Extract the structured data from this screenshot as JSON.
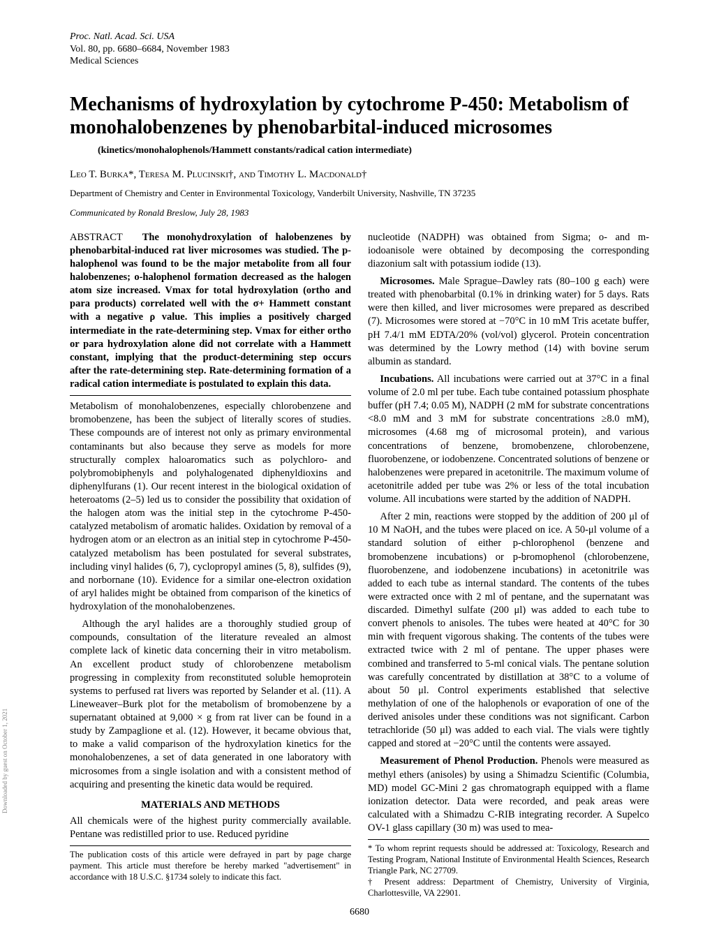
{
  "header": {
    "journal": "Proc. Natl. Acad. Sci. USA",
    "volume_line": "Vol. 80, pp. 6680–6684, November 1983",
    "section": "Medical Sciences"
  },
  "title": "Mechanisms of hydroxylation by cytochrome P-450: Metabolism of monohalobenzenes by phenobarbital-induced microsomes",
  "subtitle": "kinetics/monohalophenols/Hammett constants/radical cation intermediate",
  "authors_html": "Leo T. Burka*, Teresa M. Plucinski†, and Timothy L. Macdonald†",
  "affiliation": "Department of Chemistry and Center in Environmental Toxicology, Vanderbilt University, Nashville, TN 37235",
  "communicated": "Communicated by Ronald Breslow, July 28, 1983",
  "abstract_label": "ABSTRACT",
  "abstract_text": "The monohydroxylation of halobenzenes by phenobarbital-induced rat liver microsomes was studied. The p-halophenol was found to be the major metabolite from all four halobenzenes; o-halophenol formation decreased as the halogen atom size increased. Vmax for total hydroxylation (ortho and para products) correlated well with the σ+ Hammett constant with a negative ρ value. This implies a positively charged intermediate in the rate-determining step. Vmax for either ortho or para hydroxylation alone did not correlate with a Hammett constant, implying that the product-determining step occurs after the rate-determining step. Rate-determining formation of a radical cation intermediate is postulated to explain this data.",
  "left_paragraphs": [
    "Metabolism of monohalobenzenes, especially chlorobenzene and bromobenzene, has been the subject of literally scores of studies. These compounds are of interest not only as primary environmental contaminants but also because they serve as models for more structurally complex haloaromatics such as polychloro- and polybromobiphenyls and polyhalogenated diphenyldioxins and diphenylfurans (1). Our recent interest in the biological oxidation of heteroatoms (2–5) led us to consider the possibility that oxidation of the halogen atom was the initial step in the cytochrome P-450-catalyzed metabolism of aromatic halides. Oxidation by removal of a hydrogen atom or an electron as an initial step in cytochrome P-450-catalyzed metabolism has been postulated for several substrates, including vinyl halides (6, 7), cyclopropyl amines (5, 8), sulfides (9), and norbornane (10). Evidence for a similar one-electron oxidation of aryl halides might be obtained from comparison of the kinetics of hydroxylation of the monohalobenzenes.",
    "Although the aryl halides are a thoroughly studied group of compounds, consultation of the literature revealed an almost complete lack of kinetic data concerning their in vitro metabolism. An excellent product study of chlorobenzene metabolism progressing in complexity from reconstituted soluble hemoprotein systems to perfused rat livers was reported by Selander et al. (11). A Lineweaver–Burk plot for the metabolism of bromobenzene by a supernatant obtained at 9,000 × g from rat liver can be found in a study by Zampaglione et al. (12). However, it became obvious that, to make a valid comparison of the hydroxylation kinetics for the monohalobenzenes, a set of data generated in one laboratory with microsomes from a single isolation and with a consistent method of acquiring and presenting the kinetic data would be required."
  ],
  "section_heading": "MATERIALS AND METHODS",
  "left_tail": "All chemicals were of the highest purity commercially available. Pentane was redistilled prior to use. Reduced pyridine",
  "left_footnote": "The publication costs of this article were defrayed in part by page charge payment. This article must therefore be hereby marked \"advertisement\" in accordance with 18 U.S.C. §1734 solely to indicate this fact.",
  "right_paragraphs": [
    "nucleotide (NADPH) was obtained from Sigma; o- and m-iodoanisole were obtained by decomposing the corresponding diazonium salt with potassium iodide (13).",
    "Microsomes. Male Sprague–Dawley rats (80–100 g each) were treated with phenobarbital (0.1% in drinking water) for 5 days. Rats were then killed, and liver microsomes were prepared as described (7). Microsomes were stored at −70°C in 10 mM Tris acetate buffer, pH 7.4/1 mM EDTA/20% (vol/vol) glycerol. Protein concentration was determined by the Lowry method (14) with bovine serum albumin as standard.",
    "Incubations. All incubations were carried out at 37°C in a final volume of 2.0 ml per tube. Each tube contained potassium phosphate buffer (pH 7.4; 0.05 M), NADPH (2 mM for substrate concentrations <8.0 mM and 3 mM for substrate concentrations ≥8.0 mM), microsomes (4.68 mg of microsomal protein), and various concentrations of benzene, bromobenzene, chlorobenzene, fluorobenzene, or iodobenzene. Concentrated solutions of benzene or halobenzenes were prepared in acetonitrile. The maximum volume of acetonitrile added per tube was 2% or less of the total incubation volume. All incubations were started by the addition of NADPH.",
    "After 2 min, reactions were stopped by the addition of 200 μl of 10 M NaOH, and the tubes were placed on ice. A 50-μl volume of a standard solution of either p-chlorophenol (benzene and bromobenzene incubations) or p-bromophenol (chlorobenzene, fluorobenzene, and iodobenzene incubations) in acetonitrile was added to each tube as internal standard. The contents of the tubes were extracted once with 2 ml of pentane, and the supernatant was discarded. Dimethyl sulfate (200 μl) was added to each tube to convert phenols to anisoles. The tubes were heated at 40°C for 30 min with frequent vigorous shaking. The contents of the tubes were extracted twice with 2 ml of pentane. The upper phases were combined and transferred to 5-ml conical vials. The pentane solution was carefully concentrated by distillation at 38°C to a volume of about 50 μl. Control experiments established that selective methylation of one of the halophenols or evaporation of one of the derived anisoles under these conditions was not significant. Carbon tetrachloride (50 μl) was added to each vial. The vials were tightly capped and stored at −20°C until the contents were assayed.",
    "Measurement of Phenol Production. Phenols were measured as methyl ethers (anisoles) by using a Shimadzu Scientific (Columbia, MD) model GC-Mini 2 gas chromatograph equipped with a flame ionization detector. Data were recorded, and peak areas were calculated with a Shimadzu C-RIB integrating recorder. A Supelco OV-1 glass capillary (30 m) was used to mea-"
  ],
  "right_footnotes": [
    "* To whom reprint requests should be addressed at: Toxicology, Research and Testing Program, National Institute of Environmental Health Sciences, Research Triangle Park, NC 27709.",
    "† Present address: Department of Chemistry, University of Virginia, Charlottesville, VA 22901."
  ],
  "page_number": "6680",
  "side_text": "Downloaded by guest on October 1, 2021"
}
